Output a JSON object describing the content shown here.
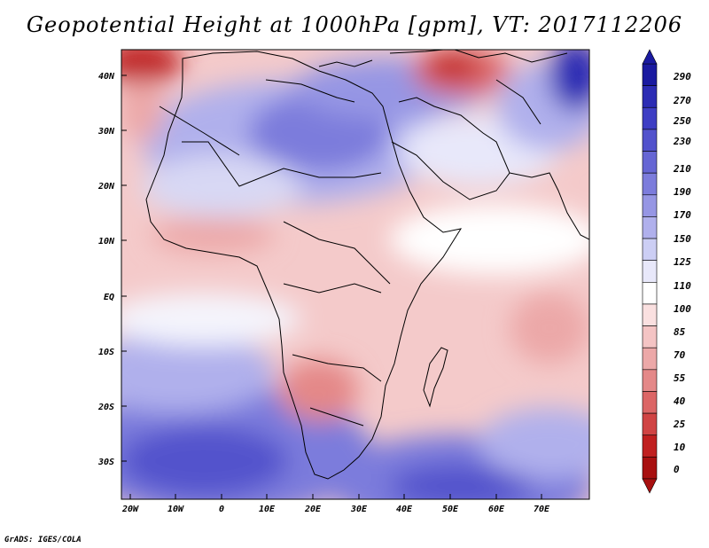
{
  "title": "Geopotential Height at 1000hPa [gpm], VT: 2017112206",
  "credit": "GrADS: IGES/COLA",
  "lat_labels": [
    "40N",
    "30N",
    "20N",
    "10N",
    "EQ",
    "10S",
    "20S",
    "30S"
  ],
  "lon_labels": [
    "20W",
    "10W",
    "0",
    "10E",
    "20E",
    "30E",
    "40E",
    "50E",
    "60E",
    "70E"
  ],
  "colorbar": {
    "labels": [
      "290",
      "270",
      "250",
      "230",
      "210",
      "190",
      "170",
      "150",
      "125",
      "110",
      "100",
      "85",
      "70",
      "55",
      "40",
      "25",
      "10",
      "0"
    ],
    "colors": [
      "#1a1aa0",
      "#2c2cb4",
      "#3e3ec4",
      "#5252cc",
      "#6666d4",
      "#7c7cdc",
      "#9696e4",
      "#b0b0ec",
      "#cccef4",
      "#e8e8fa",
      "#ffffff",
      "#fae0e0",
      "#f4c4c4",
      "#eca8a8",
      "#e48888",
      "#dc6666",
      "#d04444",
      "#c02020",
      "#a81010"
    ]
  },
  "chart_data": {
    "type": "heatmap",
    "title": "Geopotential Height at 1000hPa [gpm], VT: 2017112206",
    "variable": "Geopotential Height",
    "level": "1000hPa",
    "units": "gpm",
    "valid_time": "2017112206",
    "lon_range": [
      -22,
      80
    ],
    "lat_range": [
      -36,
      45
    ],
    "xtick_labels": [
      "20W",
      "10W",
      "0",
      "10E",
      "20E",
      "30E",
      "40E",
      "50E",
      "60E",
      "70E"
    ],
    "ytick_labels": [
      "40N",
      "30N",
      "20N",
      "10N",
      "EQ",
      "10S",
      "20S",
      "30S"
    ],
    "color_levels": [
      0,
      10,
      25,
      40,
      55,
      70,
      85,
      100,
      110,
      125,
      150,
      170,
      190,
      210,
      230,
      250,
      270,
      290
    ]
  }
}
